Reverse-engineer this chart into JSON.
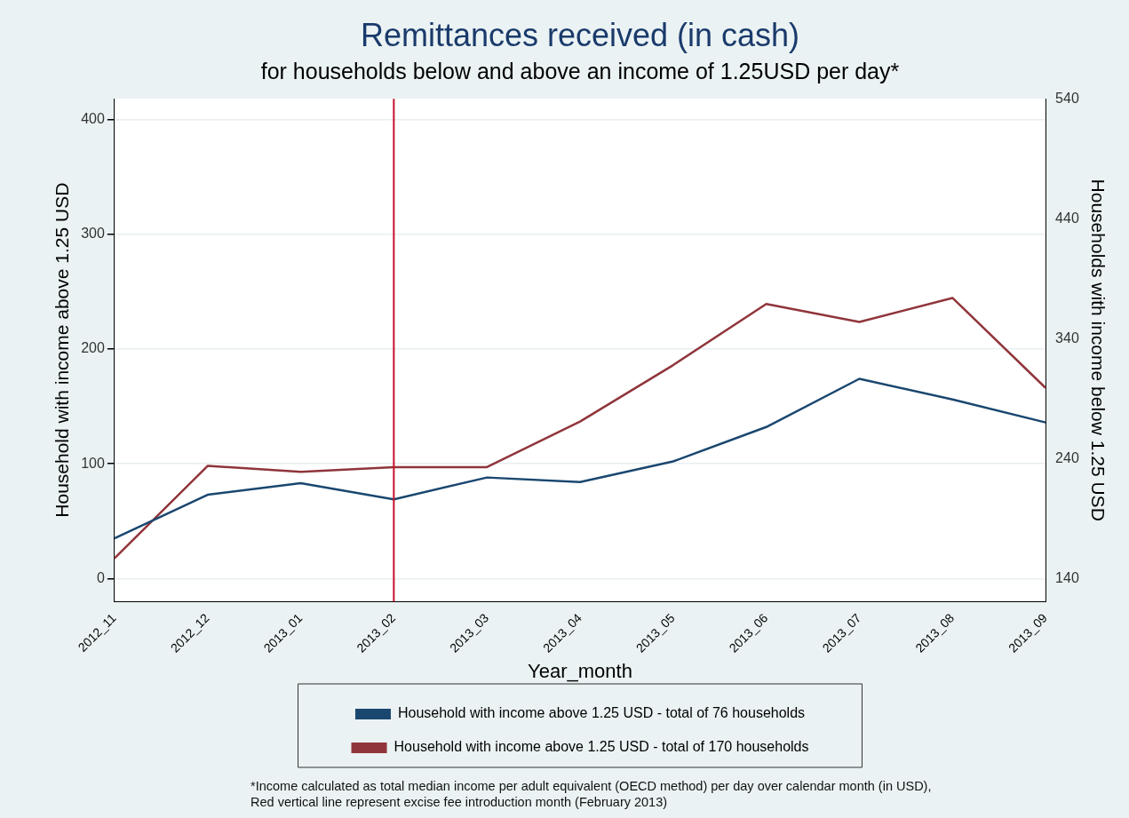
{
  "chart_data": {
    "type": "line",
    "title": "Remittances received (in cash)",
    "subtitle": "for households below and above an income of 1.25USD per day*",
    "xlabel": "Year_month",
    "ylabel": "Household with income above 1.25 USD",
    "y2label": "Households with income below 1.25 USD",
    "categories": [
      "2012_11",
      "2012_12",
      "2013_01",
      "2013_02",
      "2013_03",
      "2013_04",
      "2013_05",
      "2013_06",
      "2013_07",
      "2013_08",
      "2013_09"
    ],
    "series": [
      {
        "name": "Household with income above 1.25 USD - total of 76 households",
        "color": "#1a476f",
        "values": [
          35,
          73,
          83,
          69,
          88,
          84,
          102,
          132,
          174,
          156,
          136
        ]
      },
      {
        "name": "Household with income above 1.25 USD - total of 170 households",
        "color": "#90353b",
        "axis": "y2",
        "values": [
          157,
          234,
          229,
          233,
          233,
          271,
          318,
          369,
          354,
          374,
          299
        ]
      }
    ],
    "ylim": [
      -20,
      418
    ],
    "yticks": [
      0,
      100,
      200,
      300,
      400
    ],
    "y2lim": [
      121,
      540
    ],
    "y2ticks": [
      140,
      240,
      340,
      440,
      540
    ],
    "ref_lines": [
      {
        "axis": "x",
        "value": "2013_02",
        "color": "#c8102e"
      }
    ],
    "grid": "y",
    "legend": "bottom",
    "marker": "none",
    "line_style": "solid",
    "annotations": [
      "*Income calculated as total median income per adult equivalent (OECD method) per day over calendar month (in USD),",
      "Red vertical line represent excise fee introduction month (February 2013)"
    ]
  }
}
